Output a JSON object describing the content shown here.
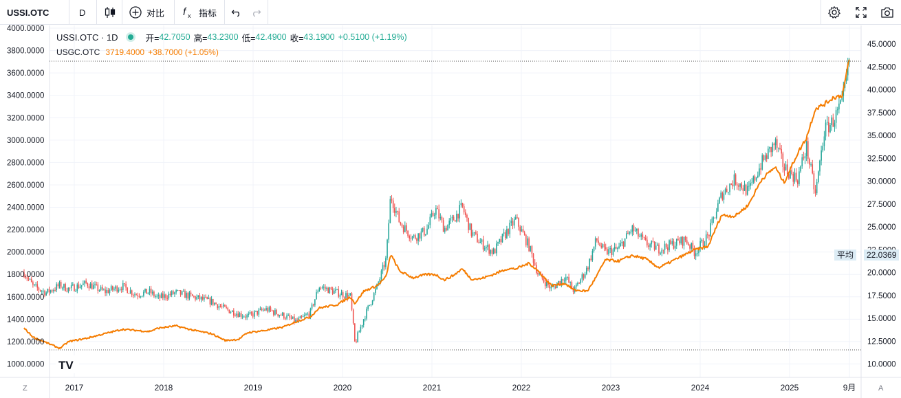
{
  "toolbar": {
    "symbol": "USSI.OTC",
    "interval": "D",
    "compare_label": "对比",
    "indicators_label": "指标"
  },
  "legend": {
    "main_symbol": "USSI.OTC · 1D",
    "o_label": "开=",
    "o_value": "42.7050",
    "h_label": "高=",
    "h_value": "43.2300",
    "l_label": "低=",
    "l_value": "42.4900",
    "c_label": "收=",
    "c_value": "43.1900",
    "change": "+0.5100 (+1.19%)",
    "compare_symbol": "USGC.OTC",
    "compare_value": "3719.4000",
    "compare_change": "+38.7000 (+1.05%)"
  },
  "avg": {
    "label": "平均",
    "value": "22.0369"
  },
  "corner": {
    "left": "Z",
    "right": "A"
  },
  "colors": {
    "up": "#26a69a",
    "down": "#ef5350",
    "compare": "#f57c00",
    "grid": "#f0f3fa",
    "text": "#131722",
    "axis": "#787b86"
  },
  "chart_data": {
    "type": "line",
    "title": "USSI.OTC · 1D vs USGC.OTC",
    "x": [
      2016.5,
      2016.6,
      2016.75,
      2016.9,
      2017.0,
      2017.2,
      2017.4,
      2017.6,
      2017.75,
      2017.9,
      2018.0,
      2018.2,
      2018.4,
      2018.6,
      2018.75,
      2018.9,
      2019.0,
      2019.2,
      2019.4,
      2019.55,
      2019.7,
      2019.8,
      2020.0,
      2020.15,
      2020.2,
      2020.3,
      2020.45,
      2020.55,
      2020.6,
      2020.7,
      2020.85,
      2021.0,
      2021.1,
      2021.2,
      2021.3,
      2021.4,
      2021.5,
      2021.6,
      2021.75,
      2021.9,
      2022.0,
      2022.15,
      2022.25,
      2022.4,
      2022.55,
      2022.65,
      2022.8,
      2022.9,
      2023.0,
      2023.15,
      2023.3,
      2023.45,
      2023.6,
      2023.75,
      2023.9,
      2024.0,
      2024.15,
      2024.3,
      2024.45,
      2024.6,
      2024.75,
      2024.9,
      2025.0,
      2025.15,
      2025.25,
      2025.35,
      2025.45,
      2025.55,
      2025.65,
      2025.73
    ],
    "series": [
      {
        "name": "USSI.OTC",
        "axis": "right",
        "values": [
          20.0,
          18.5,
          17.8,
          18.6,
          18.2,
          18.8,
          17.9,
          18.5,
          17.6,
          17.9,
          17.2,
          17.8,
          17.3,
          16.8,
          16.0,
          15.5,
          15.2,
          16.0,
          15.3,
          14.6,
          15.6,
          18.5,
          17.8,
          17.4,
          12.2,
          15.0,
          18.5,
          21.5,
          28.5,
          25.5,
          23.8,
          24.6,
          27.0,
          24.8,
          25.8,
          27.2,
          24.4,
          23.3,
          22.2,
          24.5,
          25.8,
          22.8,
          19.8,
          18.2,
          19.6,
          18.0,
          20.5,
          23.6,
          22.2,
          22.6,
          24.8,
          23.2,
          22.6,
          23.1,
          23.6,
          22.2,
          24.0,
          28.5,
          30.2,
          28.8,
          32.0,
          34.2,
          31.5,
          30.2,
          33.8,
          28.5,
          35.5,
          36.6,
          38.5,
          43.2
        ]
      },
      {
        "name": "USGC.OTC",
        "axis": "left",
        "values": [
          1320,
          1240,
          1190,
          1140,
          1200,
          1230,
          1270,
          1310,
          1300,
          1290,
          1320,
          1340,
          1300,
          1270,
          1210,
          1220,
          1280,
          1300,
          1330,
          1380,
          1420,
          1500,
          1530,
          1600,
          1540,
          1650,
          1700,
          1780,
          1980,
          1830,
          1770,
          1800,
          1800,
          1750,
          1790,
          1850,
          1760,
          1760,
          1800,
          1850,
          1850,
          1900,
          1830,
          1700,
          1720,
          1660,
          1650,
          1780,
          1930,
          1920,
          1970,
          1940,
          1860,
          1920,
          1980,
          2020,
          2050,
          2330,
          2320,
          2420,
          2650,
          2760,
          2620,
          2880,
          3020,
          3280,
          3320,
          3380,
          3400,
          3719.4
        ]
      }
    ],
    "x_ticks": [
      "2017",
      "2018",
      "2019",
      "2020",
      "2021",
      "2022",
      "2023",
      "2024",
      "2025",
      "9月"
    ],
    "y_left_ticks": [
      "1000.0000",
      "1200.0000",
      "1400.0000",
      "1600.0000",
      "1800.0000",
      "2000.0000",
      "2200.0000",
      "2400.0000",
      "2600.0000",
      "2800.0000",
      "3000.0000",
      "3200.0000",
      "3400.0000",
      "3600.0000",
      "3800.0000",
      "4000.0000"
    ],
    "y_right_ticks": [
      "10.0000",
      "12.5000",
      "15.0000",
      "17.5000",
      "20.0000",
      "22.5000",
      "25.0000",
      "27.5000",
      "30.0000",
      "32.5000",
      "35.0000",
      "37.5000",
      "40.0000",
      "42.5000",
      "45.0000"
    ],
    "ylim_left": [
      1000,
      4000
    ],
    "ylim_right": [
      10,
      45
    ],
    "xlabel": "",
    "ylabel": ""
  }
}
